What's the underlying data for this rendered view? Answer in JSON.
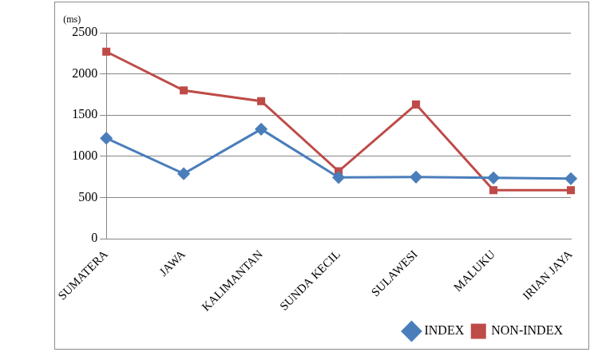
{
  "chart_data": {
    "type": "line",
    "y_label": "(ms)",
    "categories": [
      "SUMATERA",
      "JAWA",
      "KALIMANTAN",
      "SUNDA KECIL",
      "SULAWESI",
      "MALUKU",
      "IRIAN JAYA"
    ],
    "series": [
      {
        "name": "INDEX",
        "color": "#4a7ebb",
        "marker": "diamond",
        "values": [
          1220,
          790,
          1330,
          745,
          750,
          740,
          730
        ]
      },
      {
        "name": "NON-INDEX",
        "color": "#be4b48",
        "marker": "square",
        "values": [
          2270,
          1800,
          1670,
          820,
          1630,
          590,
          590
        ]
      }
    ],
    "ylim": [
      0,
      2500
    ],
    "yticks": [
      0,
      500,
      1000,
      1500,
      2000,
      2500
    ],
    "grid": true,
    "legend": "bottom"
  }
}
